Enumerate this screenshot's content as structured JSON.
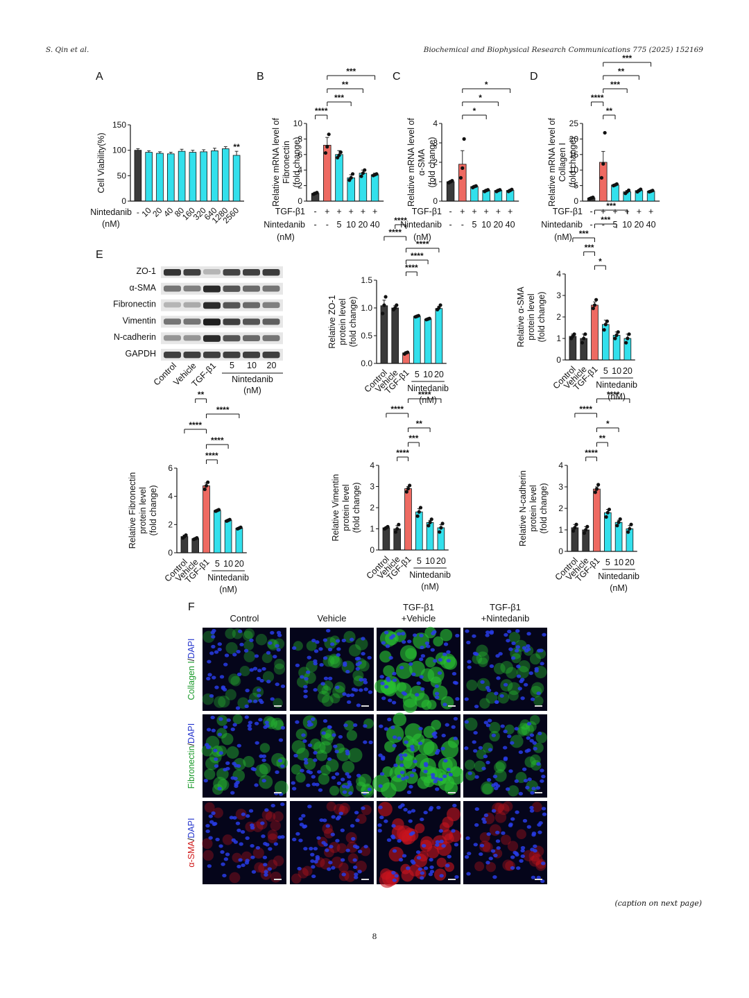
{
  "header": {
    "left": "S. Qin et al.",
    "right": "Biochemical and Biophysical Research Communications 775 (2025) 152169"
  },
  "footer": {
    "caption_note": "(caption on next page)",
    "page_number": "8"
  },
  "colors": {
    "control": "#3a3a3a",
    "tgf": "#ee6a62",
    "nint": "#33e0ec"
  },
  "panels": {
    "A": "A",
    "B": "B",
    "C": "C",
    "D": "D",
    "E": "E",
    "F": "F"
  },
  "conditions": {
    "tgf_label": "TGF-β1",
    "nint_label": "Nintedanib",
    "nM": "(nM)",
    "tgf_signs": [
      "-",
      "+",
      "+",
      "+",
      "+",
      "+"
    ],
    "nint_doses": [
      "-",
      "-",
      "5",
      "10",
      "20",
      "40"
    ],
    "e_groups": [
      "Control",
      "Vehicle",
      "TGF-β1",
      "5",
      "10",
      "20"
    ]
  },
  "blot": {
    "rows": [
      "ZO-1",
      "α-SMA",
      "Fibronectin",
      "Vimentin",
      "N-cadherin",
      "GAPDH"
    ],
    "intensity": [
      [
        0.85,
        0.8,
        0.25,
        0.78,
        0.8,
        0.82
      ],
      [
        0.55,
        0.5,
        0.9,
        0.7,
        0.6,
        0.55
      ],
      [
        0.25,
        0.3,
        0.9,
        0.7,
        0.6,
        0.5
      ],
      [
        0.55,
        0.55,
        0.95,
        0.8,
        0.7,
        0.65
      ],
      [
        0.4,
        0.4,
        0.9,
        0.7,
        0.6,
        0.55
      ],
      [
        0.8,
        0.8,
        0.8,
        0.8,
        0.8,
        0.8
      ]
    ]
  },
  "if_panel": {
    "columns": [
      "Control",
      "Vehicle",
      "TGF-β1\n+Vehicle",
      "TGF-β1\n+Nintedanib"
    ],
    "rows": [
      {
        "stain": "Collagen I",
        "sep": "/",
        "dapi": "DAPI",
        "stain_color": "#1a9a2a",
        "signal": [
          0.25,
          0.35,
          0.8,
          0.35
        ]
      },
      {
        "stain": "Fibronectin",
        "sep": "/",
        "dapi": "DAPI",
        "stain_color": "#1a9a2a",
        "signal": [
          0.45,
          0.5,
          0.85,
          0.4
        ]
      },
      {
        "stain": "α-SMA",
        "sep": "/",
        "dapi": "DAPI",
        "stain_color": "#d01a1a",
        "signal": [
          0.15,
          0.2,
          0.7,
          0.2
        ]
      }
    ]
  },
  "chart_data": [
    {
      "id": "A",
      "type": "bar",
      "ylabel": "Cell Viability(%)",
      "xgroup_label": "Nintedanib",
      "xunit": "(nM)",
      "categories": [
        "-",
        "10",
        "20",
        "40",
        "80",
        "160",
        "320",
        "640",
        "1280",
        "2560"
      ],
      "values": [
        100,
        96,
        94,
        93,
        98,
        96,
        97,
        99,
        103,
        90
      ],
      "errors": [
        3,
        3,
        3,
        3,
        4,
        4,
        4,
        5,
        4,
        8
      ],
      "ylim": [
        0,
        150
      ],
      "yticks": [
        "0",
        "50",
        "100",
        "150"
      ],
      "annotations": [
        {
          "index": 9,
          "text": "**"
        }
      ]
    },
    {
      "id": "B",
      "type": "bar",
      "ylabel_lines": [
        "Relative mRNA level of",
        "Fibronectin",
        "(fold change)"
      ],
      "values": [
        1.0,
        7.2,
        6.0,
        3.0,
        3.6,
        3.4
      ],
      "errors": [
        0.15,
        1.0,
        0.5,
        0.4,
        0.4,
        0.2
      ],
      "points": [
        [
          0.9,
          1.0,
          1.1
        ],
        [
          6.2,
          7.0,
          8.6
        ],
        [
          5.6,
          5.9,
          6.3
        ],
        [
          2.7,
          3.0,
          3.5
        ],
        [
          3.2,
          3.6,
          4.0
        ],
        [
          3.3,
          3.4,
          3.5
        ]
      ],
      "ylim": [
        0,
        10
      ],
      "yticks": [
        "0",
        "2",
        "4",
        "6",
        "8",
        "10"
      ],
      "brackets": [
        {
          "from": 0,
          "to": 1,
          "text": "****"
        },
        {
          "from": 1,
          "to": 3,
          "text": "***"
        },
        {
          "from": 1,
          "to": 4,
          "text": "**"
        },
        {
          "from": 1,
          "to": 5,
          "text": "***"
        }
      ]
    },
    {
      "id": "C",
      "type": "bar",
      "ylabel_lines": [
        "Relative mRNA level of",
        "α-SMA",
        "(fold change)"
      ],
      "values": [
        1.0,
        1.9,
        0.75,
        0.55,
        0.55,
        0.55
      ],
      "errors": [
        0.05,
        0.7,
        0.05,
        0.05,
        0.05,
        0.05
      ],
      "points": [
        [
          0.95,
          1.0,
          1.05
        ],
        [
          1.2,
          1.7,
          3.2
        ],
        [
          0.7,
          0.75,
          0.78
        ],
        [
          0.5,
          0.55,
          0.58
        ],
        [
          0.5,
          0.55,
          0.58
        ],
        [
          0.5,
          0.55,
          0.6
        ]
      ],
      "ylim": [
        0,
        4
      ],
      "yticks": [
        "0",
        "1",
        "2",
        "3",
        "4"
      ],
      "brackets": [
        {
          "from": 1,
          "to": 3,
          "text": "*"
        },
        {
          "from": 1,
          "to": 4,
          "text": "*"
        },
        {
          "from": 1,
          "to": 5,
          "text": "*"
        }
      ]
    },
    {
      "id": "D",
      "type": "bar",
      "ylabel_lines": [
        "Relative mRNA level of",
        "Collagen I",
        "(fold change)"
      ],
      "values": [
        1.0,
        12.5,
        5.2,
        3.0,
        3.4,
        3.2
      ],
      "errors": [
        0.2,
        3.5,
        0.3,
        0.4,
        0.3,
        0.2
      ],
      "points": [
        [
          0.8,
          1.0,
          1.2
        ],
        [
          7.5,
          12.0,
          22.0
        ],
        [
          5.0,
          5.2,
          5.5
        ],
        [
          2.5,
          3.0,
          3.5
        ],
        [
          3.0,
          3.4,
          3.8
        ],
        [
          3.0,
          3.2,
          3.4
        ]
      ],
      "ylim": [
        0,
        25
      ],
      "yticks": [
        "0",
        "5",
        "10",
        "15",
        "20",
        "25"
      ],
      "brackets": [
        {
          "from": 1,
          "to": 2,
          "text": "**"
        },
        {
          "from": 0,
          "to": 1,
          "text": "****"
        },
        {
          "from": 1,
          "to": 3,
          "text": "***"
        },
        {
          "from": 1,
          "to": 4,
          "text": "**"
        },
        {
          "from": 1,
          "to": 5,
          "text": "***"
        }
      ]
    },
    {
      "id": "E-ZO1",
      "type": "bar",
      "ylabel_lines": [
        "Relative ZO-1",
        "protein level",
        "(fold change)"
      ],
      "values": [
        1.04,
        1.0,
        0.19,
        0.85,
        0.8,
        0.99
      ],
      "errors": [
        0.1,
        0.04,
        0.02,
        0.01,
        0.01,
        0.04
      ],
      "points": [
        [
          0.9,
          1.05,
          1.2
        ],
        [
          0.97,
          1.0,
          1.05
        ],
        [
          0.17,
          0.19,
          0.2
        ],
        [
          0.84,
          0.85,
          0.86
        ],
        [
          0.79,
          0.8,
          0.81
        ],
        [
          0.97,
          1.0,
          1.05
        ]
      ],
      "ylim": [
        0,
        1.5
      ],
      "yticks": [
        "0.0",
        "0.5",
        "1.0",
        "1.5"
      ],
      "brackets": [
        {
          "from": 2,
          "to": 3,
          "text": "****"
        },
        {
          "from": 2,
          "to": 4,
          "text": "****"
        },
        {
          "from": 2,
          "to": 5,
          "text": "****"
        },
        {
          "from": 0,
          "to": 2,
          "text": "****"
        },
        {
          "from": 1,
          "to": 2,
          "text": "****"
        }
      ]
    },
    {
      "id": "E-aSMA",
      "type": "bar",
      "ylabel_lines": [
        "Relative α-SMA",
        "protein level",
        "(fold change)"
      ],
      "values": [
        1.1,
        1.0,
        2.55,
        1.65,
        1.15,
        1.0
      ],
      "errors": [
        0.1,
        0.2,
        0.15,
        0.2,
        0.15,
        0.2
      ],
      "points": [
        [
          1.0,
          1.1,
          1.2
        ],
        [
          0.8,
          1.0,
          1.2
        ],
        [
          2.4,
          2.55,
          2.8
        ],
        [
          1.4,
          1.65,
          1.8
        ],
        [
          1.0,
          1.15,
          1.3
        ],
        [
          0.8,
          1.0,
          1.2
        ]
      ],
      "ylim": [
        0,
        4
      ],
      "yticks": [
        "0",
        "1",
        "2",
        "3",
        "4"
      ],
      "brackets": [
        {
          "from": 2,
          "to": 3,
          "text": "*"
        },
        {
          "from": 1,
          "to": 2,
          "text": "***"
        },
        {
          "from": 0,
          "to": 2,
          "text": "***"
        },
        {
          "from": 2,
          "to": 4,
          "text": "***"
        },
        {
          "from": 2,
          "to": 5,
          "text": "***"
        }
      ]
    },
    {
      "id": "E-FN",
      "type": "bar",
      "ylabel_lines": [
        "Relative Fibronectin",
        "protein level",
        "(fold change)"
      ],
      "values": [
        1.15,
        1.0,
        4.75,
        3.0,
        2.3,
        1.75
      ],
      "errors": [
        0.1,
        0.05,
        0.2,
        0.05,
        0.05,
        0.05
      ],
      "points": [
        [
          1.05,
          1.15,
          1.25
        ],
        [
          0.95,
          1.0,
          1.05
        ],
        [
          4.5,
          4.75,
          5.0
        ],
        [
          2.95,
          3.0,
          3.05
        ],
        [
          2.25,
          2.3,
          2.35
        ],
        [
          1.7,
          1.75,
          1.8
        ]
      ],
      "ylim": [
        0,
        6
      ],
      "yticks": [
        "0",
        "2",
        "4",
        "6"
      ],
      "brackets": [
        {
          "from": 2,
          "to": 3,
          "text": "****"
        },
        {
          "from": 2,
          "to": 4,
          "text": "****"
        },
        {
          "from": 0,
          "to": 2,
          "text": "****"
        },
        {
          "from": 2,
          "to": 5,
          "text": "****"
        },
        {
          "from": 1,
          "to": 2,
          "text": "**"
        }
      ]
    },
    {
      "id": "E-Vim",
      "type": "bar",
      "ylabel_lines": [
        "Relative Vimentin",
        "protein level",
        "(fold change)"
      ],
      "values": [
        1.05,
        1.0,
        2.9,
        1.8,
        1.3,
        1.05
      ],
      "errors": [
        0.05,
        0.15,
        0.1,
        0.15,
        0.1,
        0.15
      ],
      "points": [
        [
          1.0,
          1.05,
          1.1
        ],
        [
          0.85,
          1.0,
          1.2
        ],
        [
          2.75,
          2.9,
          3.05
        ],
        [
          1.6,
          1.8,
          2.0
        ],
        [
          1.15,
          1.3,
          1.45
        ],
        [
          0.85,
          1.05,
          1.25
        ]
      ],
      "ylim": [
        0,
        4
      ],
      "yticks": [
        "0",
        "1",
        "2",
        "3",
        "4"
      ],
      "brackets": [
        {
          "from": 1,
          "to": 2,
          "text": "****"
        },
        {
          "from": 2,
          "to": 3,
          "text": "***"
        },
        {
          "from": 2,
          "to": 4,
          "text": "**"
        },
        {
          "from": 0,
          "to": 2,
          "text": "****"
        },
        {
          "from": 2,
          "to": 5,
          "text": "****"
        }
      ]
    },
    {
      "id": "E-Ncad",
      "type": "bar",
      "ylabel_lines": [
        "Relative N-cadherin",
        "protein level",
        "(fold change)"
      ],
      "values": [
        1.1,
        1.0,
        2.9,
        1.8,
        1.35,
        1.05
      ],
      "errors": [
        0.15,
        0.15,
        0.1,
        0.15,
        0.1,
        0.15
      ],
      "points": [
        [
          0.95,
          1.1,
          1.25
        ],
        [
          0.85,
          1.0,
          1.15
        ],
        [
          2.75,
          2.9,
          3.1
        ],
        [
          1.6,
          1.8,
          1.95
        ],
        [
          1.2,
          1.35,
          1.5
        ],
        [
          0.9,
          1.05,
          1.25
        ]
      ],
      "ylim": [
        0,
        4
      ],
      "yticks": [
        "0",
        "1",
        "2",
        "3",
        "4"
      ],
      "brackets": [
        {
          "from": 1,
          "to": 2,
          "text": "****"
        },
        {
          "from": 2,
          "to": 3,
          "text": "**"
        },
        {
          "from": 2,
          "to": 4,
          "text": "*"
        },
        {
          "from": 0,
          "to": 2,
          "text": "****"
        },
        {
          "from": 2,
          "to": 5,
          "text": "****"
        }
      ]
    }
  ]
}
